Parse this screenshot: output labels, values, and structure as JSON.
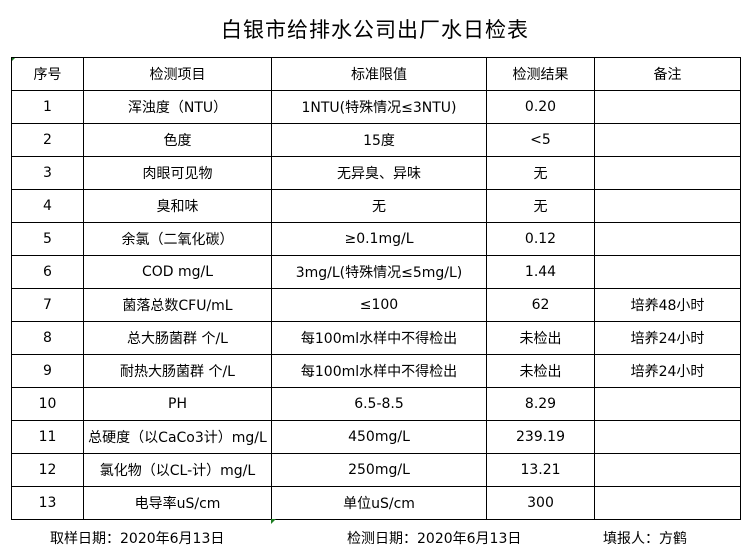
{
  "title": "白银市给排水公司出厂水日检表",
  "headers": [
    "序号",
    "检测项目",
    "标准限值",
    "检测结果",
    "备注"
  ],
  "rows": [
    [
      "1",
      "浑浊度（NTU）",
      "1NTU(特殊情况≤3NTU)",
      "0.20",
      ""
    ],
    [
      "2",
      "色度",
      "15度",
      "<5",
      ""
    ],
    [
      "3",
      "肉眼可见物",
      "无异臭、异味",
      "无",
      ""
    ],
    [
      "4",
      "臭和味",
      "无",
      "无",
      ""
    ],
    [
      "5",
      "余氯（二氧化碳）",
      "≥0.1mg/L",
      "0.12",
      ""
    ],
    [
      "6",
      "COD          mg/L",
      "3mg/L(特殊情况≤5mg/L)",
      "1.44",
      ""
    ],
    [
      "7",
      "菌落总数CFU/mL",
      "≤100",
      "62",
      "培养48小时"
    ],
    [
      "8",
      "总大肠菌群 个/L",
      "每100ml水样中不得检出",
      "未检出",
      "培养24小时"
    ],
    [
      "9",
      "耐热大肠菌群 个/L",
      "每100ml水样中不得检出",
      "未检出",
      "培养24小时"
    ],
    [
      "10",
      "PH",
      "6.5-8.5",
      "8.29",
      ""
    ],
    [
      "11",
      "总硬度（以CaCo3计）mg/L",
      "450mg/L",
      "239.19",
      ""
    ],
    [
      "12",
      "氯化物（以CL-计）mg/L",
      "250mg/L",
      "13.21",
      ""
    ],
    [
      "13",
      "电导率uS/cm",
      "单位uS/cm",
      "300",
      ""
    ]
  ],
  "footer": {
    "sampling_date": "取样日期：2020年6月13日",
    "test_date": "检测日期：2020年6月13日",
    "reporter": "填报人：方鹤"
  }
}
